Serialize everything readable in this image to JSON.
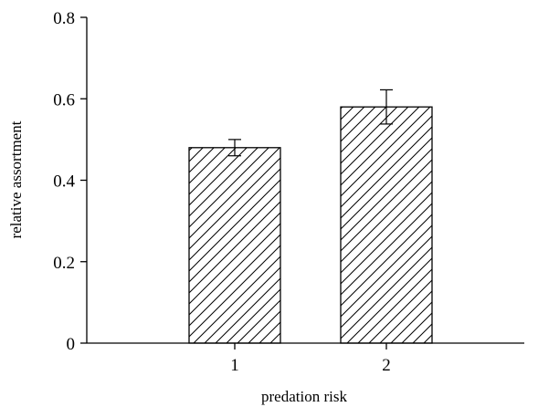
{
  "chart_data": {
    "type": "bar",
    "categories": [
      "1",
      "2"
    ],
    "values": [
      0.48,
      0.58
    ],
    "error_bars": [
      {
        "low": 0.46,
        "high": 0.5
      },
      {
        "low": 0.538,
        "high": 0.622
      }
    ],
    "xlabel": "predation risk",
    "ylabel": "relative assortment",
    "ylim": [
      0,
      0.8
    ],
    "yticks": [
      "0",
      "0.2",
      "0.4",
      "0.6",
      "0.8"
    ],
    "bar_fill": "hatched",
    "colors": {
      "axis": "#000000",
      "bar_edge": "#000000",
      "hatch": "#000000",
      "background": "#ffffff"
    },
    "grid": false,
    "legend": "none"
  }
}
